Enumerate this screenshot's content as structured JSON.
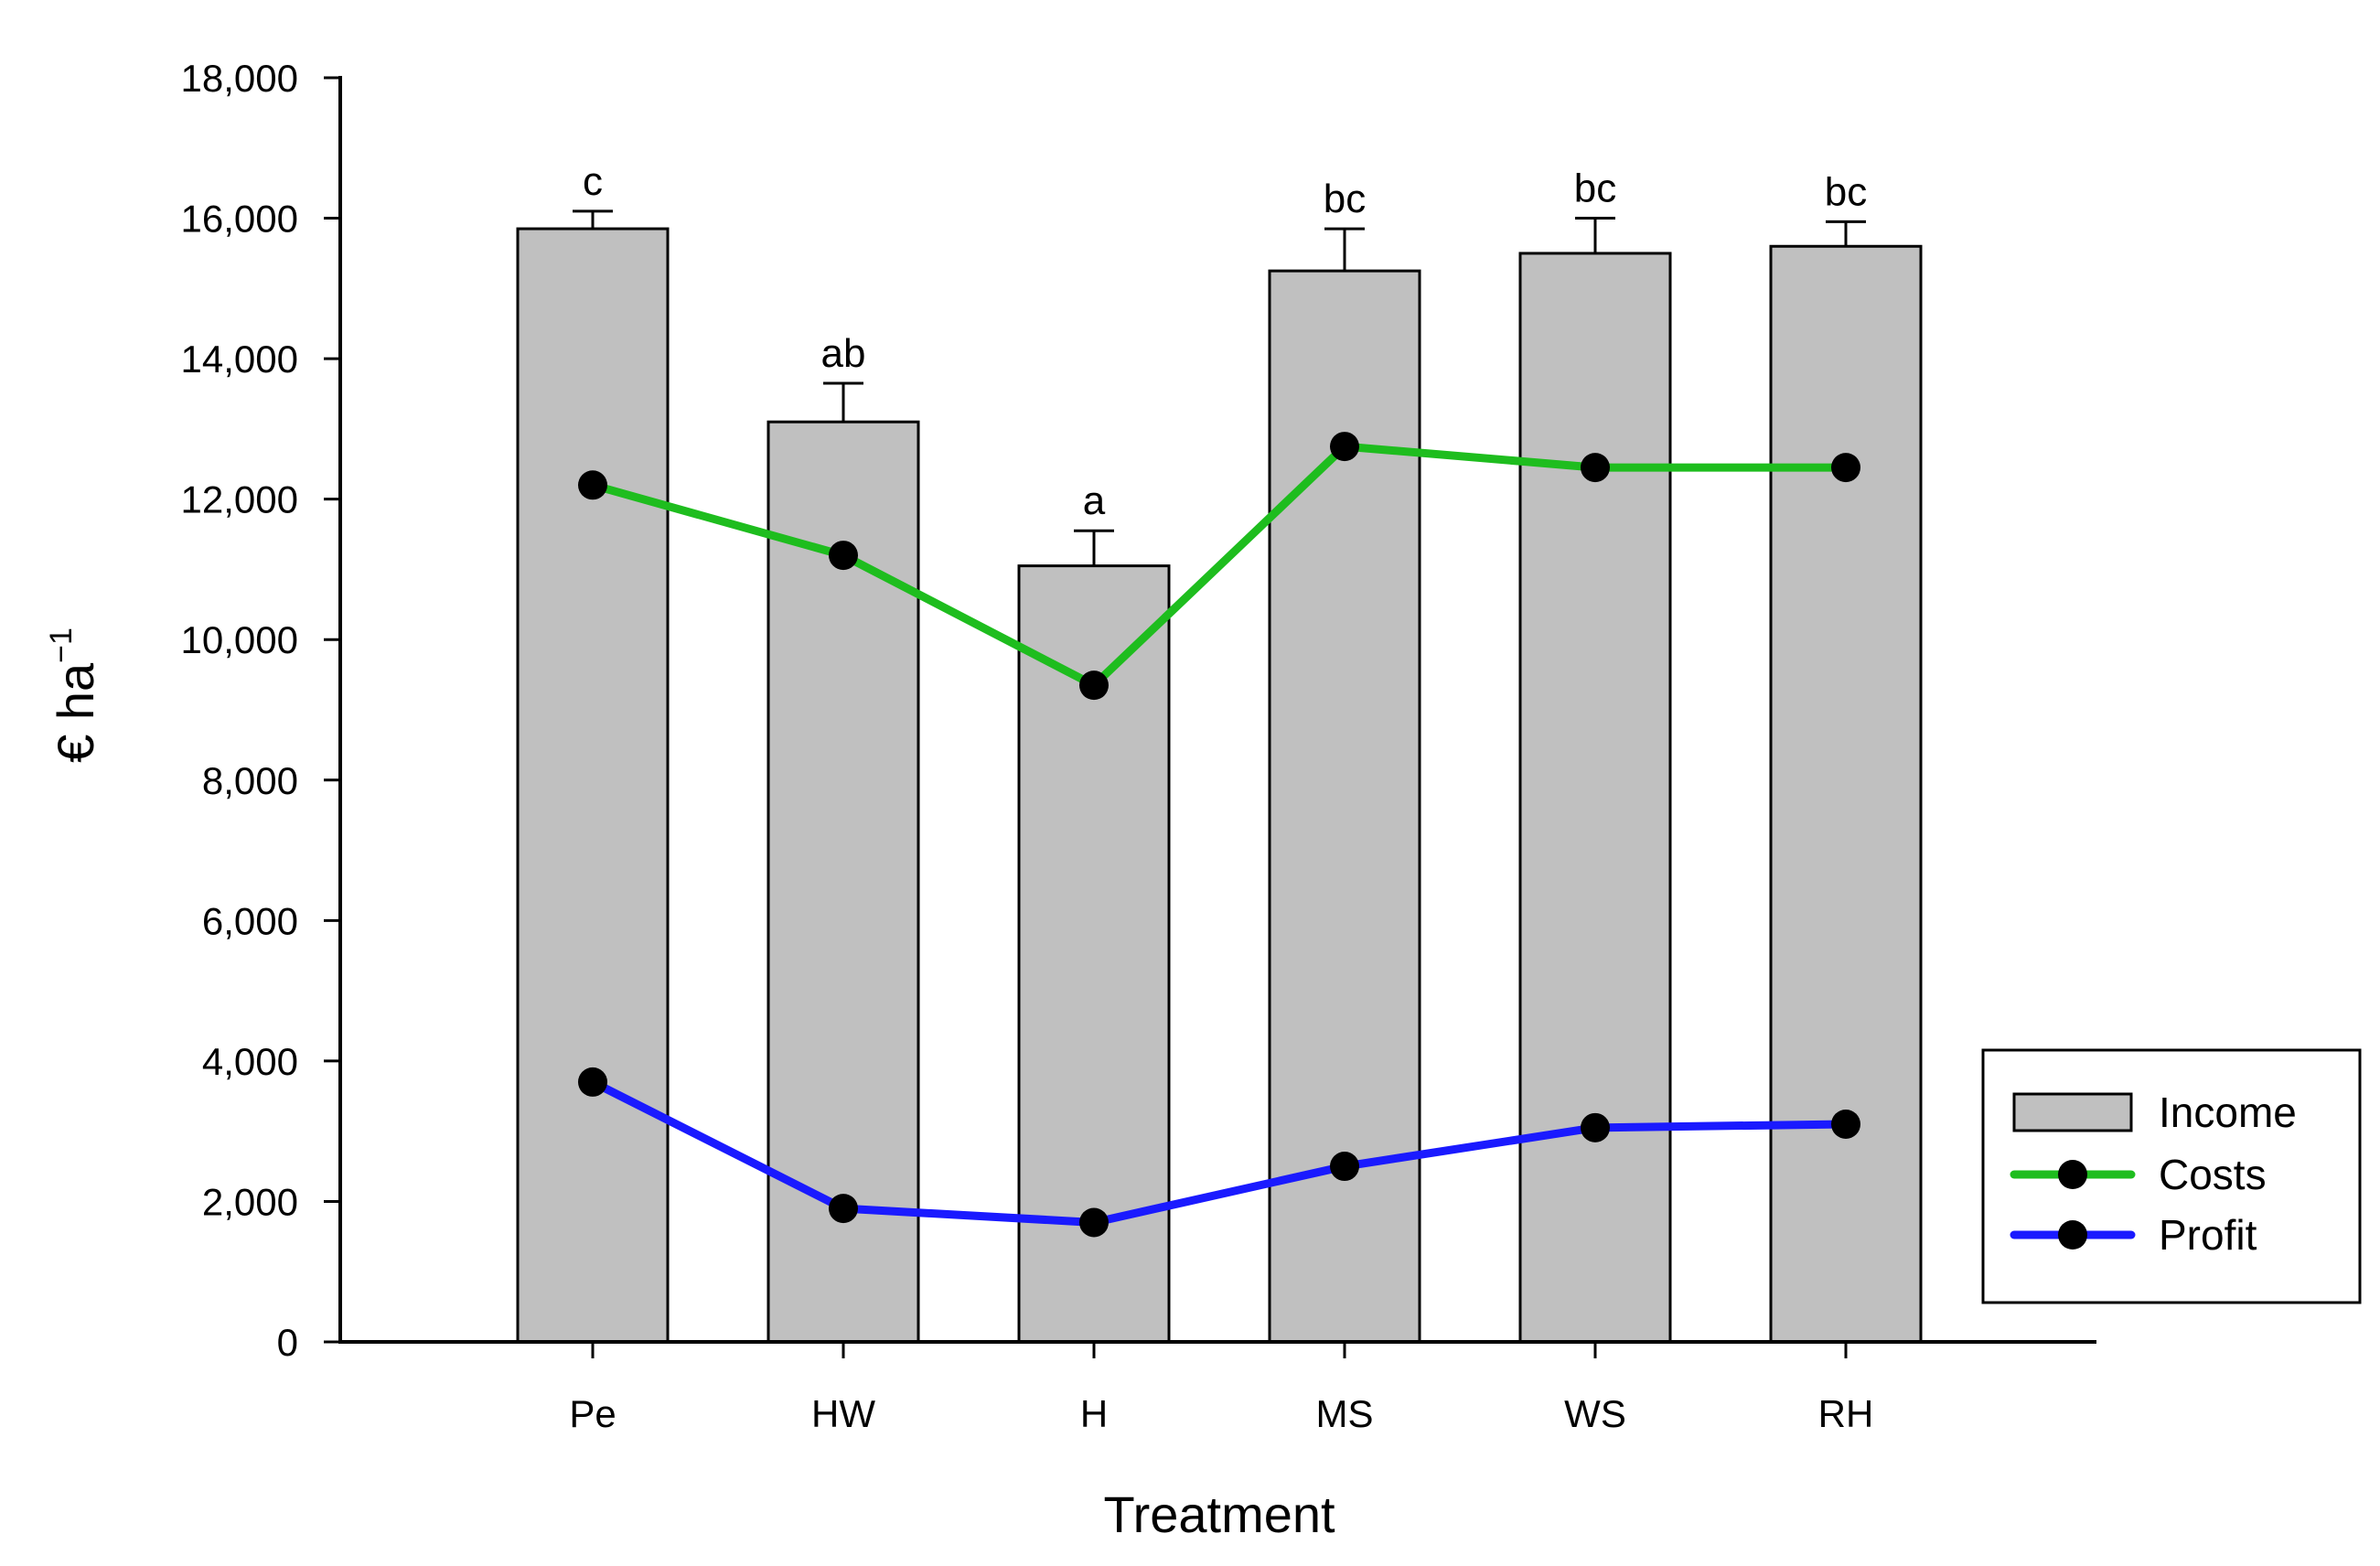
{
  "chart_data": {
    "type": "bar",
    "title": "",
    "xlabel": "Treatment",
    "ylabel_main": "€ ha",
    "ylabel_sup": "−1",
    "ylim": [
      0,
      18000
    ],
    "yticks": [
      0,
      2000,
      4000,
      6000,
      8000,
      10000,
      12000,
      14000,
      16000,
      18000
    ],
    "ytick_labels": [
      "0",
      "2,000",
      "4,000",
      "6,000",
      "8,000",
      "10,000",
      "12,000",
      "14,000",
      "16,000",
      "18,000"
    ],
    "categories": [
      "Pe",
      "HW",
      "H",
      "MS",
      "WS",
      "RH"
    ],
    "bars": {
      "name": "Income",
      "values": [
        15850,
        13100,
        11050,
        15250,
        15500,
        15600
      ],
      "error": [
        250,
        550,
        500,
        600,
        500,
        350
      ],
      "significance": [
        "c",
        "ab",
        "a",
        "bc",
        "bc",
        "bc"
      ],
      "color": "#c0c0c0"
    },
    "series": [
      {
        "name": "Costs",
        "values": [
          12200,
          11200,
          9350,
          12750,
          12450,
          12450
        ],
        "color": "#1ebd1e"
      },
      {
        "name": "Profit",
        "values": [
          3700,
          1900,
          1700,
          2500,
          3050,
          3100
        ],
        "color": "#1a1aff"
      }
    ],
    "legend": {
      "position": "bottom-right",
      "items": [
        {
          "label": "Income",
          "kind": "bar"
        },
        {
          "label": "Costs",
          "kind": "line"
        },
        {
          "label": "Profit",
          "kind": "line"
        }
      ]
    }
  }
}
